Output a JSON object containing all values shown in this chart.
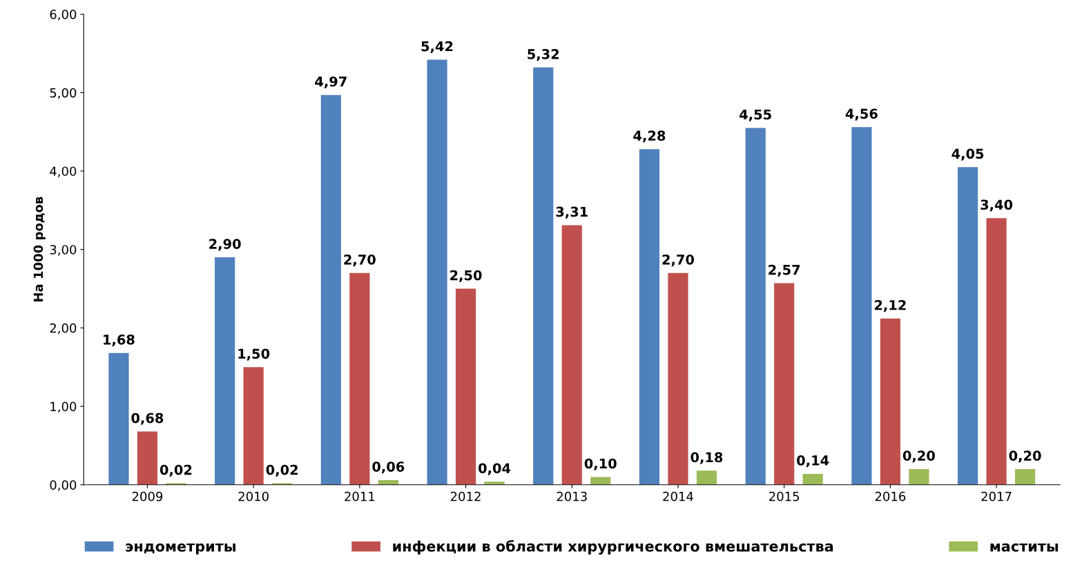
{
  "chart_data": {
    "type": "bar",
    "ylabel": "На 1000 родов",
    "categories": [
      "2009",
      "2010",
      "2011",
      "2012",
      "2013",
      "2014",
      "2015",
      "2016",
      "2017"
    ],
    "series": [
      {
        "name": "эндометриты",
        "color": "#4f81bd",
        "values": [
          1.68,
          2.9,
          4.97,
          5.42,
          5.32,
          4.28,
          4.55,
          4.56,
          4.05
        ],
        "value_labels": [
          "1,68",
          "2,90",
          "4,97",
          "5,42",
          "5,32",
          "4,28",
          "4,55",
          "4,56",
          "4,05"
        ]
      },
      {
        "name": "инфекции в области хирургического вмешательства",
        "color": "#c0504d",
        "values": [
          0.68,
          1.5,
          2.7,
          2.5,
          3.31,
          2.7,
          2.57,
          2.12,
          3.4
        ],
        "value_labels": [
          "0,68",
          "1,50",
          "2,70",
          "2,50",
          "3,31",
          "2,70",
          "2,57",
          "2,12",
          "3,40"
        ]
      },
      {
        "name": "маститы",
        "color": "#9bbb59",
        "values": [
          0.02,
          0.02,
          0.06,
          0.04,
          0.1,
          0.18,
          0.14,
          0.2,
          0.2
        ],
        "value_labels": [
          "0,02",
          "0,02",
          "0,06",
          "0,04",
          "0,10",
          "0,18",
          "0,14",
          "0,20",
          "0,20"
        ]
      }
    ],
    "ylim": [
      0,
      6
    ],
    "yticks": [
      {
        "value": 0,
        "label": "0,00"
      },
      {
        "value": 1,
        "label": "1,00"
      },
      {
        "value": 2,
        "label": "2,00"
      },
      {
        "value": 3,
        "label": "3,00"
      },
      {
        "value": 4,
        "label": "4,00"
      },
      {
        "value": 5,
        "label": "5,00"
      },
      {
        "value": 6,
        "label": "6,00"
      }
    ],
    "grid": false,
    "legend": "bottom"
  }
}
